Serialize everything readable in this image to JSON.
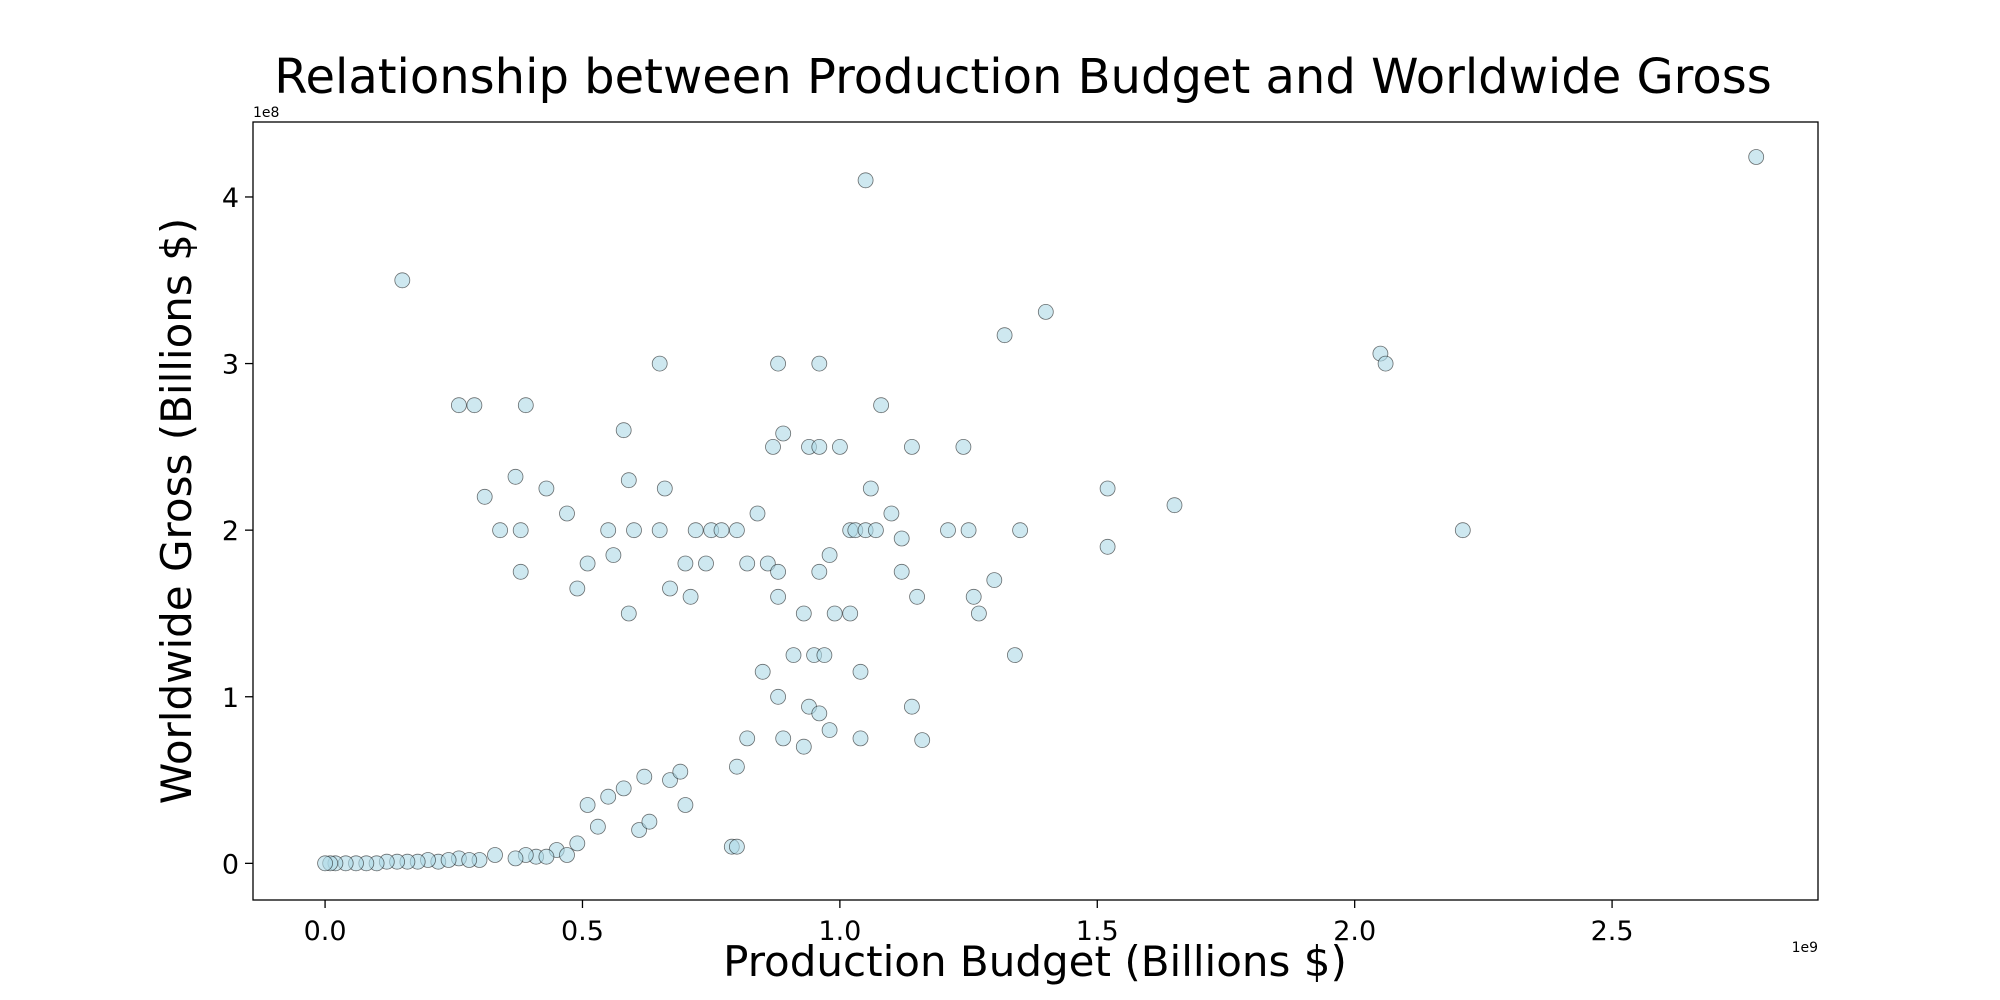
{
  "chart_data": {
    "type": "scatter",
    "title": "Relationship between Production Budget and Worldwide Gross",
    "xlabel": "Production Budget (Billions $)",
    "ylabel": "Worldwide Gross (Billions $)",
    "x_offset_text": "1e9",
    "y_offset_text": "1e8",
    "xlim": [
      -0.14,
      2.9
    ],
    "ylim": [
      -0.22,
      4.45
    ],
    "x_ticks": [
      0.0,
      0.5,
      1.0,
      1.5,
      2.0,
      2.5
    ],
    "x_tick_labels": [
      "0.0",
      "0.5",
      "1.0",
      "1.5",
      "2.0",
      "2.5"
    ],
    "y_ticks": [
      0,
      1,
      2,
      3,
      4
    ],
    "y_tick_labels": [
      "0",
      "1",
      "2",
      "3",
      "4"
    ],
    "grid": false,
    "legend": "none",
    "marker_color": "#add8e6",
    "marker_edge_color": "#000000",
    "series": [
      {
        "x": [
          2.78,
          1.05,
          0.15,
          1.4,
          1.32,
          2.05,
          2.06,
          0.88,
          0.96,
          0.65,
          0.26,
          0.29,
          0.39,
          1.08,
          0.58,
          0.89,
          0.87,
          0.94,
          0.96,
          1.0,
          1.14,
          1.24,
          0.37,
          0.59,
          0.66,
          1.06,
          0.31,
          0.43,
          1.52,
          1.65,
          0.47,
          0.38,
          0.34,
          0.55,
          0.6,
          0.65,
          0.72,
          0.75,
          0.77,
          0.8,
          0.84,
          1.02,
          1.03,
          1.05,
          1.07,
          1.1,
          1.12,
          1.21,
          1.25,
          1.35,
          2.21,
          0.98,
          1.52,
          0.96,
          1.3,
          0.86,
          0.7,
          1.12,
          0.38,
          0.51,
          0.56,
          0.74,
          0.82,
          0.88,
          1.15,
          1.26,
          1.27,
          0.49,
          0.59,
          0.67,
          0.71,
          0.88,
          0.93,
          0.99,
          1.34,
          0.91,
          0.95,
          1.04,
          0.85,
          0.88,
          0.97,
          1.02,
          1.14,
          0.94,
          0.96,
          1.16,
          0.98,
          0.82,
          0.89,
          0.93,
          1.04,
          0.8,
          0.61,
          0.63,
          0.51,
          0.53,
          0.49,
          0.7,
          0.62,
          0.79,
          0.8,
          0.67,
          0.69,
          0.55,
          0.58,
          0.45,
          0.47,
          0.41,
          0.39,
          0.43,
          0.37,
          0.33,
          0.3,
          0.26,
          0.28,
          0.22,
          0.24,
          0.2,
          0.18,
          0.16,
          0.14,
          0.12,
          0.1,
          0.08,
          0.06,
          0.04,
          0.02,
          0.01,
          0.0
        ],
        "y": [
          4.24,
          4.1,
          3.5,
          3.31,
          3.17,
          3.06,
          3.0,
          3.0,
          3.0,
          3.0,
          2.75,
          2.75,
          2.75,
          2.75,
          2.6,
          2.58,
          2.5,
          2.5,
          2.5,
          2.5,
          2.5,
          2.5,
          2.32,
          2.3,
          2.25,
          2.25,
          2.2,
          2.25,
          2.25,
          2.15,
          2.1,
          2.0,
          2.0,
          2.0,
          2.0,
          2.0,
          2.0,
          2.0,
          2.0,
          2.0,
          2.1,
          2.0,
          2.0,
          2.0,
          2.0,
          2.1,
          1.95,
          2.0,
          2.0,
          2.0,
          2.0,
          1.85,
          1.9,
          1.75,
          1.7,
          1.8,
          1.8,
          1.75,
          1.75,
          1.8,
          1.85,
          1.8,
          1.8,
          1.75,
          1.6,
          1.6,
          1.5,
          1.65,
          1.5,
          1.65,
          1.6,
          1.6,
          1.5,
          1.5,
          1.25,
          1.25,
          1.25,
          1.15,
          1.15,
          1.0,
          1.25,
          1.5,
          0.94,
          0.94,
          0.9,
          0.74,
          0.8,
          0.75,
          0.75,
          0.7,
          0.75,
          0.58,
          0.2,
          0.25,
          0.35,
          0.22,
          0.12,
          0.35,
          0.52,
          0.1,
          0.1,
          0.5,
          0.55,
          0.4,
          0.45,
          0.08,
          0.05,
          0.04,
          0.05,
          0.04,
          0.03,
          0.05,
          0.02,
          0.03,
          0.02,
          0.01,
          0.02,
          0.02,
          0.01,
          0.01,
          0.01,
          0.01,
          0.0,
          0.0,
          0.0,
          0.0,
          0.0,
          0.0,
          0.0
        ]
      }
    ]
  }
}
